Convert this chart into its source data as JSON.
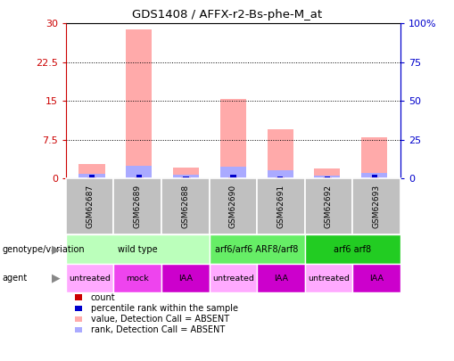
{
  "title": "GDS1408 / AFFX-r2-Bs-phe-M_at",
  "samples": [
    "GSM62687",
    "GSM62689",
    "GSM62688",
    "GSM62690",
    "GSM62691",
    "GSM62692",
    "GSM62693"
  ],
  "count_values": [
    0.3,
    0.3,
    0.2,
    0.3,
    0.3,
    0.2,
    0.3
  ],
  "rank_values": [
    0.7,
    0.7,
    0.5,
    0.7,
    0.5,
    0.5,
    0.7
  ],
  "absent_value_bars": [
    2.8,
    28.8,
    2.1,
    15.4,
    9.5,
    1.9,
    8.0
  ],
  "absent_rank_bars": [
    1.0,
    2.5,
    0.8,
    2.4,
    1.6,
    0.6,
    1.2
  ],
  "ylim": [
    0,
    30
  ],
  "yticks": [
    0,
    7.5,
    15,
    22.5,
    30
  ],
  "ytick_labels": [
    "0",
    "7.5",
    "15",
    "22.5",
    "30"
  ],
  "y2ticks": [
    0,
    25,
    50,
    75,
    100
  ],
  "y2tick_labels": [
    "0",
    "25",
    "50",
    "75",
    "100%"
  ],
  "left_tick_color": "#cc0000",
  "right_tick_color": "#0000cc",
  "genotype_groups": [
    {
      "label": "wild type",
      "start": 0,
      "end": 3,
      "color": "#bbffbb"
    },
    {
      "label": "arf6/arf6 ARF8/arf8",
      "start": 3,
      "end": 5,
      "color": "#66ee66"
    },
    {
      "label": "arf6 arf8",
      "start": 5,
      "end": 7,
      "color": "#22cc22"
    }
  ],
  "agent_groups": [
    {
      "label": "untreated",
      "start": 0,
      "end": 1,
      "color": "#ffaaff"
    },
    {
      "label": "mock",
      "start": 1,
      "end": 2,
      "color": "#ee44ee"
    },
    {
      "label": "IAA",
      "start": 2,
      "end": 3,
      "color": "#cc00cc"
    },
    {
      "label": "untreated",
      "start": 3,
      "end": 4,
      "color": "#ffaaff"
    },
    {
      "label": "IAA",
      "start": 4,
      "end": 5,
      "color": "#cc00cc"
    },
    {
      "label": "untreated",
      "start": 5,
      "end": 6,
      "color": "#ffaaff"
    },
    {
      "label": "IAA",
      "start": 6,
      "end": 7,
      "color": "#cc00cc"
    }
  ],
  "color_absent_value": "#ffaaaa",
  "color_absent_rank": "#aaaaff",
  "color_count": "#cc0000",
  "color_rank": "#0000cc",
  "bar_width": 0.55,
  "legend_items": [
    {
      "color": "#cc0000",
      "label": "count"
    },
    {
      "color": "#0000cc",
      "label": "percentile rank within the sample"
    },
    {
      "color": "#ffaaaa",
      "label": "value, Detection Call = ABSENT"
    },
    {
      "color": "#aaaaff",
      "label": "rank, Detection Call = ABSENT"
    }
  ],
  "sample_box_color": "#c0c0c0",
  "fig_bg": "#ffffff"
}
